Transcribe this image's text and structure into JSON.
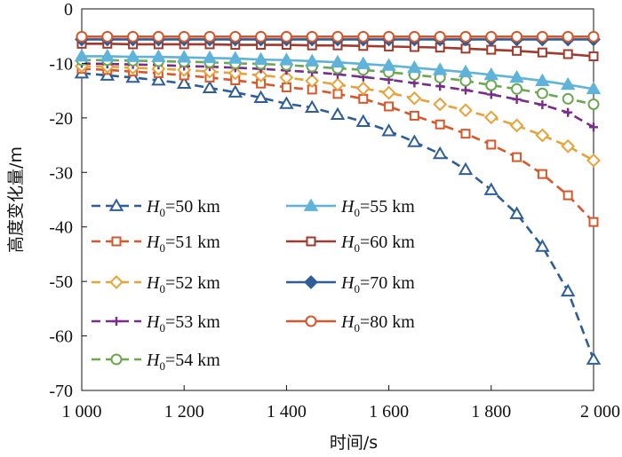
{
  "chart_data": {
    "type": "line",
    "title": "",
    "xlabel": "时间/s",
    "ylabel": "高度变化量/m",
    "xlim": [
      1000,
      2000
    ],
    "ylim": [
      -70,
      0
    ],
    "xticks": [
      1000,
      1200,
      1400,
      1600,
      1800,
      2000
    ],
    "xtick_labels": [
      "1 000",
      "1 200",
      "1 400",
      "1 600",
      "1 800",
      "2 000"
    ],
    "yticks": [
      0,
      -10,
      -20,
      -30,
      -40,
      -50,
      -60,
      -70
    ],
    "ytick_labels": [
      "0",
      "-10",
      "-20",
      "-30",
      "-40",
      "-50",
      "-60",
      "-70"
    ],
    "grid": false,
    "legend_position": "lower-left, two columns",
    "x": [
      1000,
      1050,
      1100,
      1150,
      1200,
      1250,
      1300,
      1350,
      1400,
      1450,
      1500,
      1550,
      1600,
      1650,
      1700,
      1750,
      1800,
      1850,
      1900,
      1950,
      2000
    ],
    "series": [
      {
        "name_main": "H",
        "name_sub": "0",
        "name_rest": "=50 km",
        "color": "#2e5e99",
        "dash": "dashed",
        "marker": "triangle-open",
        "values": [
          -11.8,
          -12.2,
          -12.6,
          -13.1,
          -13.7,
          -14.5,
          -15.3,
          -16.3,
          -17.4,
          -18.1,
          -19.4,
          -20.7,
          -22.4,
          -24.4,
          -26.6,
          -29.5,
          -33.2,
          -37.6,
          -43.6,
          -51.8,
          -64.3
        ]
      },
      {
        "name_main": "H",
        "name_sub": "0",
        "name_rest": "=51 km",
        "color": "#d8572a",
        "dash": "dashed",
        "marker": "square-open",
        "values": [
          -11.0,
          -11.2,
          -11.5,
          -11.8,
          -12.2,
          -12.6,
          -13.1,
          -13.7,
          -14.4,
          -14.8,
          -15.6,
          -16.5,
          -17.9,
          -19.6,
          -21.2,
          -22.9,
          -24.9,
          -27.2,
          -30.3,
          -34.2,
          -39.1
        ]
      },
      {
        "name_main": "H",
        "name_sub": "0",
        "name_rest": "=52 km",
        "color": "#e8a23a",
        "dash": "dashed",
        "marker": "diamond-open",
        "values": [
          -10.5,
          -10.6,
          -10.8,
          -11.0,
          -11.2,
          -11.5,
          -11.8,
          -12.2,
          -12.6,
          -13.2,
          -13.9,
          -14.6,
          -15.4,
          -16.4,
          -17.5,
          -18.6,
          -19.9,
          -21.4,
          -23.2,
          -25.2,
          -27.8
        ]
      },
      {
        "name_main": "H",
        "name_sub": "0",
        "name_rest": "=53 km",
        "color": "#7a2c8a",
        "dash": "dashed",
        "marker": "plus",
        "values": [
          -10.0,
          -10.1,
          -10.2,
          -10.3,
          -10.5,
          -10.6,
          -10.8,
          -11.0,
          -11.3,
          -11.6,
          -12.0,
          -12.5,
          -13.0,
          -13.6,
          -14.2,
          -14.9,
          -15.7,
          -16.6,
          -17.6,
          -19.0,
          -21.7
        ]
      },
      {
        "name_main": "H",
        "name_sub": "0",
        "name_rest": "=54 km",
        "color": "#6aa84f",
        "dash": "dashed",
        "marker": "circle-open",
        "values": [
          -9.4,
          -9.4,
          -9.5,
          -9.6,
          -9.7,
          -9.8,
          -10.0,
          -10.1,
          -10.3,
          -10.6,
          -10.9,
          -11.2,
          -11.6,
          -12.1,
          -12.6,
          -13.2,
          -14.0,
          -14.7,
          -15.5,
          -16.5,
          -17.5
        ]
      },
      {
        "name_main": "H",
        "name_sub": "0",
        "name_rest": "=55 km",
        "color": "#5fb3d9",
        "dash": "solid",
        "marker": "triangle-filled",
        "values": [
          -8.7,
          -8.7,
          -8.8,
          -8.8,
          -8.9,
          -9.0,
          -9.1,
          -9.3,
          -9.4,
          -9.6,
          -9.8,
          -10.1,
          -10.4,
          -10.8,
          -11.2,
          -11.6,
          -12.1,
          -12.6,
          -13.2,
          -13.9,
          -14.7
        ]
      },
      {
        "name_main": "H",
        "name_sub": "0",
        "name_rest": "=60 km",
        "color": "#a03a2c",
        "dash": "solid",
        "marker": "square-open",
        "values": [
          -6.4,
          -6.4,
          -6.5,
          -6.5,
          -6.5,
          -6.5,
          -6.6,
          -6.6,
          -6.6,
          -6.7,
          -6.7,
          -6.8,
          -6.9,
          -7.0,
          -7.1,
          -7.3,
          -7.5,
          -7.7,
          -8.0,
          -8.3,
          -8.7
        ]
      },
      {
        "name_main": "H",
        "name_sub": "0",
        "name_rest": "=70 km",
        "color": "#2e5e99",
        "dash": "solid",
        "marker": "diamond-filled",
        "values": [
          -5.6,
          -5.6,
          -5.6,
          -5.6,
          -5.6,
          -5.6,
          -5.6,
          -5.6,
          -5.6,
          -5.6,
          -5.6,
          -5.6,
          -5.6,
          -5.6,
          -5.6,
          -5.6,
          -5.6,
          -5.6,
          -5.6,
          -5.6,
          -5.6
        ]
      },
      {
        "name_main": "H",
        "name_sub": "0",
        "name_rest": "=80 km",
        "color": "#d8572a",
        "dash": "solid",
        "marker": "circle-open",
        "values": [
          -5.1,
          -5.1,
          -5.1,
          -5.1,
          -5.1,
          -5.1,
          -5.1,
          -5.1,
          -5.1,
          -5.1,
          -5.1,
          -5.1,
          -5.1,
          -5.1,
          -5.1,
          -5.1,
          -5.1,
          -5.1,
          -5.1,
          -5.1,
          -5.1
        ]
      }
    ]
  }
}
